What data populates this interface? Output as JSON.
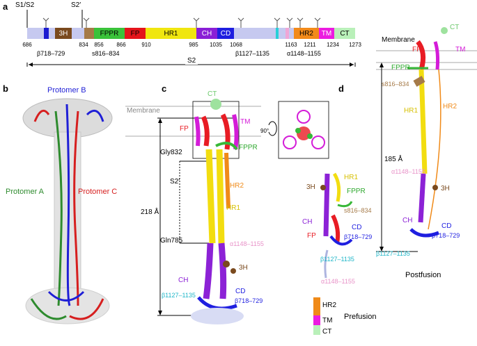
{
  "panels": {
    "a": "a",
    "b": "b",
    "c": "c",
    "d": "d"
  },
  "panel_a": {
    "site_labels": {
      "s1s2": "S1/S2",
      "s2prime": "S2′"
    },
    "segments": {
      "h3": "3H",
      "fppr": "FPPR",
      "fp": "FP",
      "hr1": "HR1",
      "ch": "CH",
      "cd": "CD",
      "hr2": "HR2",
      "tm": "TM",
      "ct": "CT"
    },
    "ticks": [
      "686",
      "834",
      "856",
      "866",
      "910",
      "985",
      "1035",
      "1068",
      "1163",
      "1211",
      "1234",
      "1273"
    ],
    "annotations": {
      "beta718": "β718–729",
      "s816": "s816–834",
      "beta1127": "β1127–1135",
      "alpha1148": "α1148–1155"
    },
    "s2_label": "S2"
  },
  "panel_b": {
    "protomer_b": "Protomer B",
    "protomer_a": "Protomer A",
    "protomer_c": "Protomer C",
    "colors": {
      "a": "#2e8b2e",
      "b": "#1f1fd6",
      "c": "#d61f1f"
    }
  },
  "panel_c": {
    "membrane": "Membrane",
    "ct": "CT",
    "fp": "FP",
    "tm": "TM",
    "fppr": "FPPR",
    "gly832": "Gly832",
    "s2prime": "S2′",
    "hr2": "HR2",
    "hr1": "HR1",
    "distance": "218 Å",
    "gln785": "Gln785",
    "alpha1148": "α1148–1155",
    "ch": "CH",
    "h3": "3H",
    "cd": "CD",
    "beta1127": "β1127–1135",
    "beta718": "β718–729",
    "rotation": "90°"
  },
  "panel_d": {
    "membrane": "Membrane",
    "ct": "CT",
    "fp": "FP",
    "tm": "TM",
    "fppr": "FPPR",
    "s816": "s816–834",
    "hr1": "HR1",
    "hr2": "HR2",
    "distance": "185 Å",
    "alpha1148_post": "α1148–1155",
    "h3": "3H",
    "ch": "CH",
    "cd": "CD",
    "beta718": "β718–729",
    "beta1127_post": "β1127–1135",
    "postfusion": "Postfusion",
    "pre": {
      "h3": "3H",
      "hr1": "HR1",
      "fppr": "FPPR",
      "s816": "s816–834",
      "ch": "CH",
      "cd": "CD",
      "fp": "FP",
      "beta718": "β718–729",
      "beta1127": "β1127–1135",
      "alpha1148": "α1148–1155",
      "hr2": "HR2",
      "tm": "TM",
      "ct": "CT",
      "prefusion": "Prefusion"
    }
  }
}
